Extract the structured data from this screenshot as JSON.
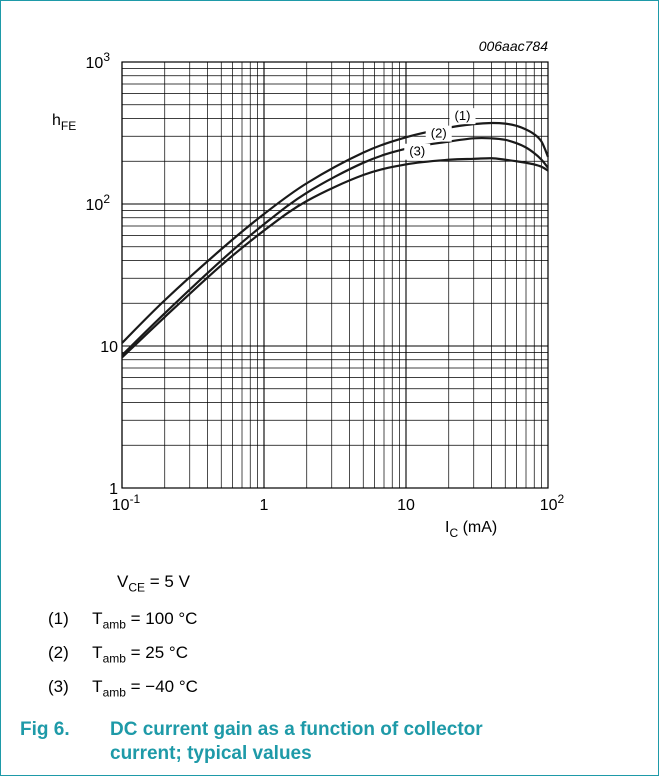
{
  "figure": {
    "code": "006aac784",
    "number": "Fig 6.",
    "title": "DC current gain as a function of collector current; typical values",
    "border_color": "#1e9aa8"
  },
  "conditions": {
    "vce": {
      "sym": "V",
      "sub": "CE",
      "rest": " = 5 V"
    },
    "list": [
      {
        "num": "(1)",
        "sym": "T",
        "sub": "amb",
        "rest": " = 100 °C"
      },
      {
        "num": "(2)",
        "sym": "T",
        "sub": "amb",
        "rest": " = 25 °C"
      },
      {
        "num": "(3)",
        "sym": "T",
        "sub": "amb",
        "rest": " = −40 °C"
      }
    ]
  },
  "chart_data": {
    "type": "line",
    "x_scale": "log",
    "y_scale": "log",
    "xlim": [
      0.1,
      100
    ],
    "ylim": [
      1,
      1000
    ],
    "grid": true,
    "xlabel": {
      "sym": "I",
      "sub": "C",
      "rest": " (mA)"
    },
    "ylabel": {
      "sym": "h",
      "sub": "FE"
    },
    "x_ticks": [
      {
        "value": 0.1,
        "base": "10",
        "exp": "-1"
      },
      {
        "value": 1,
        "base": "1",
        "exp": ""
      },
      {
        "value": 10,
        "base": "10",
        "exp": ""
      },
      {
        "value": 100,
        "base": "10",
        "exp": "2"
      }
    ],
    "y_ticks": [
      {
        "value": 1,
        "base": "1",
        "exp": ""
      },
      {
        "value": 10,
        "base": "10",
        "exp": ""
      },
      {
        "value": 100,
        "base": "10",
        "exp": "2"
      },
      {
        "value": 1000,
        "base": "10",
        "exp": "3"
      }
    ],
    "series": [
      {
        "name": "(1)",
        "x": [
          0.1,
          0.2,
          0.5,
          1,
          2,
          5,
          10,
          20,
          30,
          40,
          50,
          60,
          70,
          80,
          90,
          100
        ],
        "y": [
          10.5,
          21,
          48,
          85,
          140,
          230,
          295,
          345,
          365,
          372,
          368,
          355,
          335,
          310,
          275,
          215
        ]
      },
      {
        "name": "(2)",
        "x": [
          0.1,
          0.2,
          0.5,
          1,
          2,
          5,
          10,
          20,
          30,
          40,
          50,
          60,
          70,
          80,
          90,
          100
        ],
        "y": [
          8.6,
          17,
          40,
          72,
          120,
          195,
          245,
          275,
          290,
          290,
          283,
          268,
          250,
          228,
          205,
          180
        ]
      },
      {
        "name": "(3)",
        "x": [
          0.1,
          0.2,
          0.5,
          1,
          2,
          5,
          10,
          20,
          30,
          40,
          50,
          60,
          70,
          80,
          90,
          100
        ],
        "y": [
          8.3,
          16,
          37,
          65,
          105,
          160,
          190,
          205,
          208,
          210,
          205,
          200,
          195,
          190,
          183,
          172
        ]
      }
    ]
  }
}
